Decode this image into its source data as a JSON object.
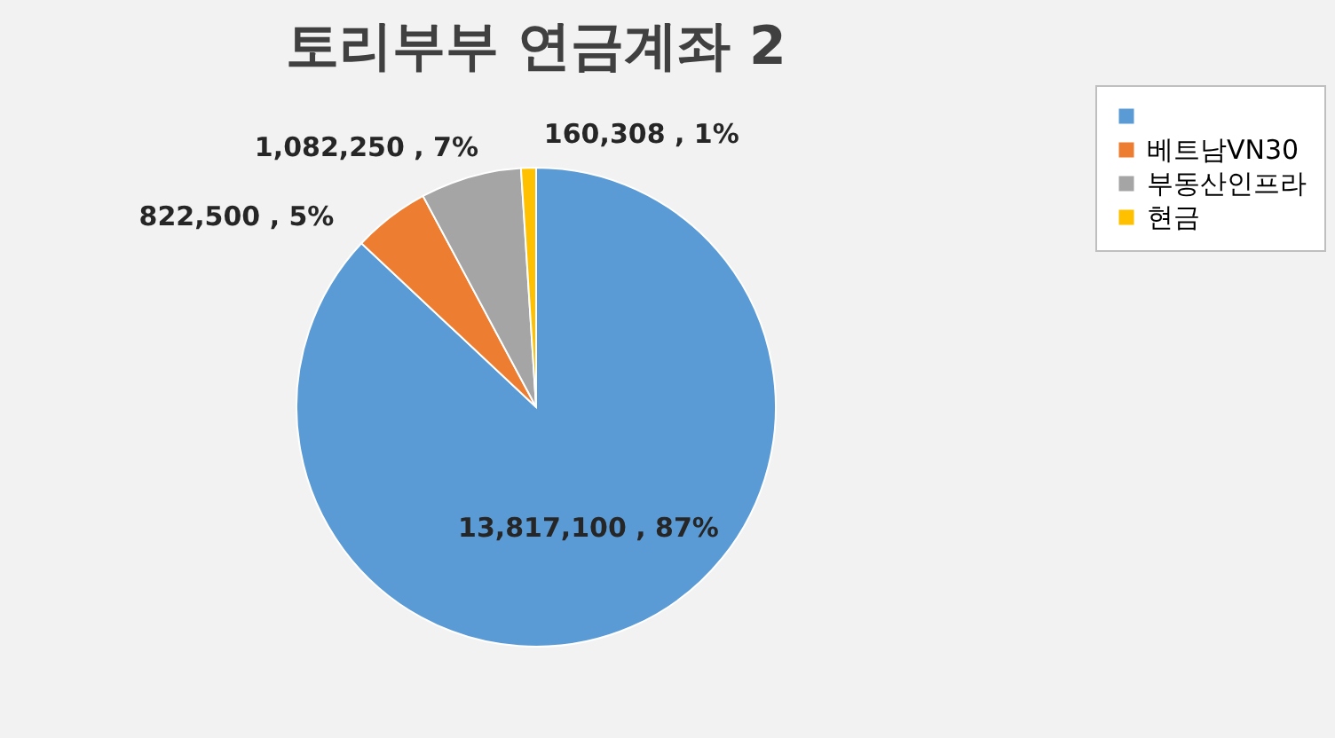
{
  "chart_data": {
    "type": "pie",
    "title": "토리부부 연금계좌 2",
    "categories": [
      null,
      "베트남VN30",
      "부동산인프라",
      "현금"
    ],
    "values": [
      13817100,
      822500,
      1082250,
      160308
    ],
    "colors": [
      "#5b9bd5",
      "#ed7d31",
      "#a5a5a5",
      "#ffc000"
    ],
    "value_labels": [
      "13,817,100 , 87%",
      "822,500 , 5%",
      "1,082,250 , 7%",
      "160,308 , 1%"
    ],
    "legend": "right"
  }
}
